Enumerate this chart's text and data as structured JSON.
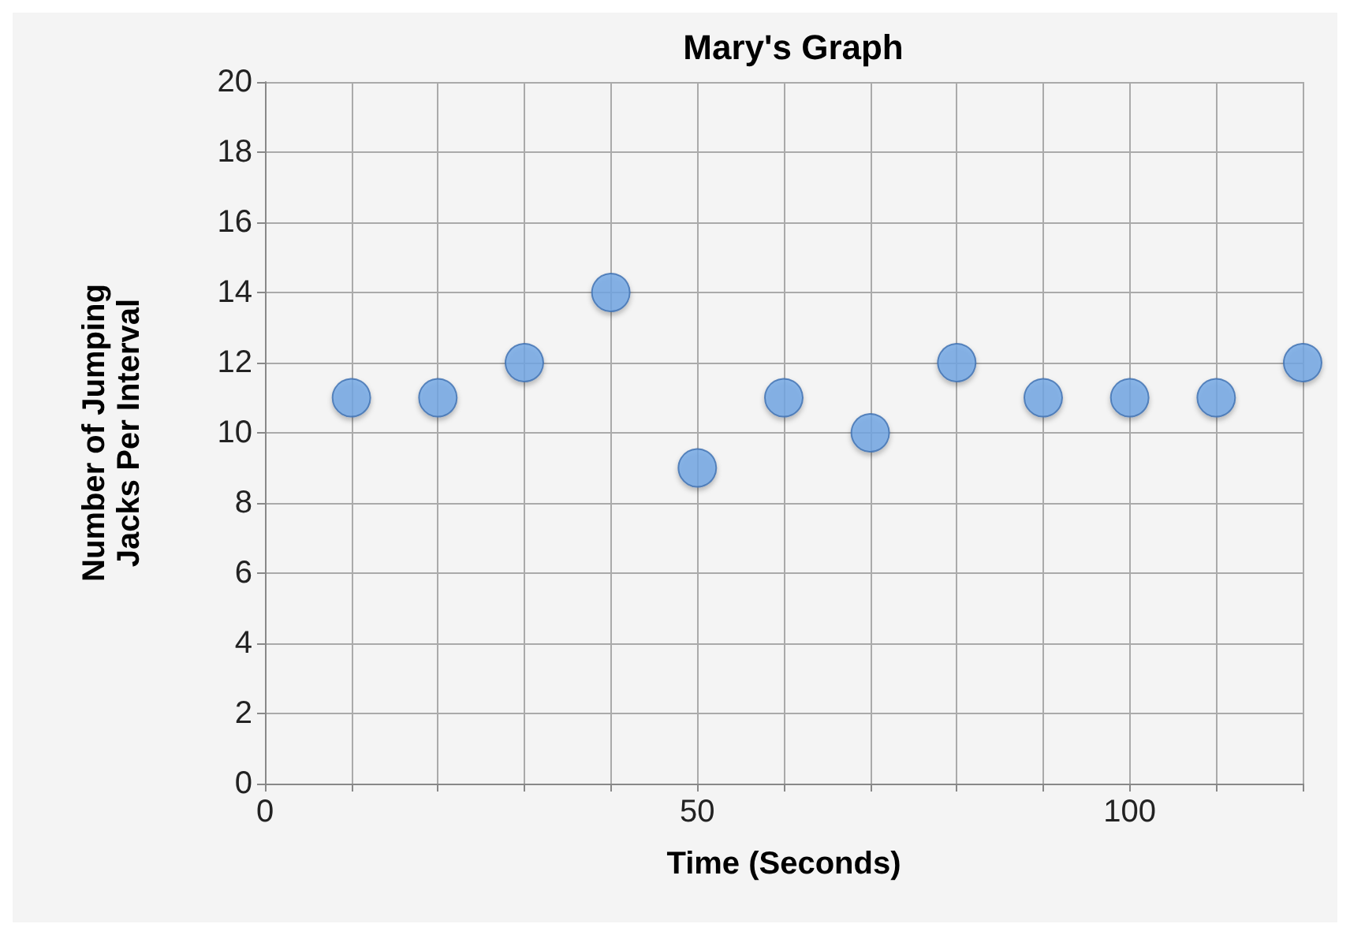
{
  "chart_data": {
    "type": "scatter",
    "title": "Mary's Graph",
    "xlabel": "Time (Seconds)",
    "ylabel": "Number of Jumping\nJacks Per Interval",
    "x": [
      10,
      20,
      30,
      40,
      50,
      60,
      70,
      80,
      90,
      100,
      110,
      120
    ],
    "series": [
      {
        "color": "#72a7e6",
        "values": [
          11,
          11,
          12,
          14,
          9,
          11,
          10,
          12,
          11,
          11,
          11,
          12
        ]
      }
    ],
    "xlim": [
      0,
      120
    ],
    "xticks": [
      0,
      {
        "value": 10,
        "label": null
      },
      {
        "value": 20,
        "label": null
      },
      {
        "value": 30,
        "label": null
      },
      {
        "value": 40,
        "label": null
      },
      50,
      {
        "value": 60,
        "label": null
      },
      {
        "value": 70,
        "label": null
      },
      {
        "value": 80,
        "label": null
      },
      {
        "value": 90,
        "label": null
      },
      100,
      {
        "value": 110,
        "label": null
      },
      {
        "value": 120,
        "label": null
      }
    ],
    "ylim": [
      0,
      20
    ],
    "yticks": [
      0,
      2,
      4,
      6,
      8,
      10,
      12,
      14,
      16,
      18,
      20
    ],
    "grid": true,
    "marker": "circle"
  }
}
